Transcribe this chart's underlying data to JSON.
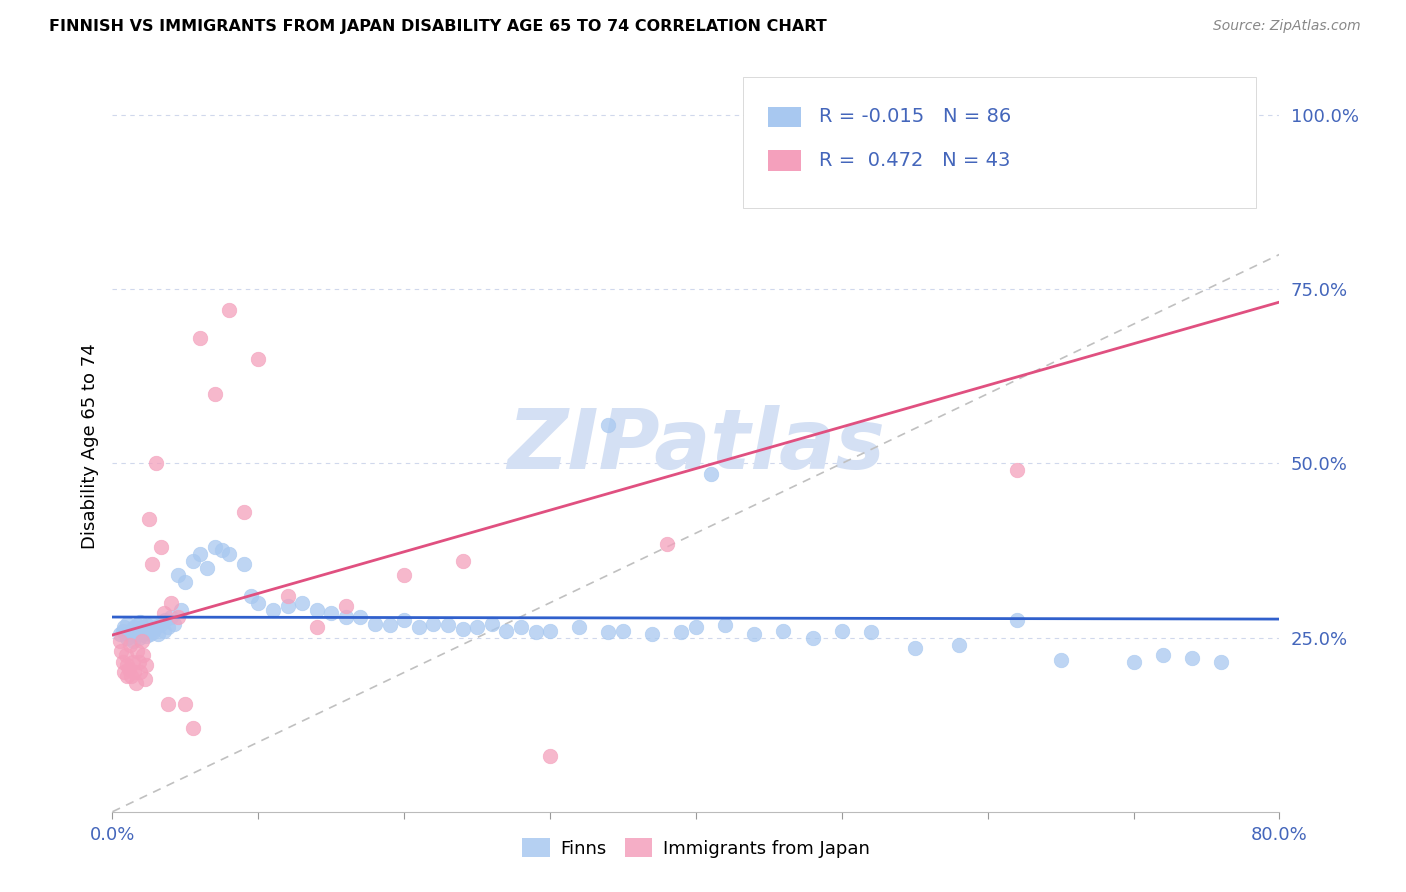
{
  "title": "FINNISH VS IMMIGRANTS FROM JAPAN DISABILITY AGE 65 TO 74 CORRELATION CHART",
  "source": "Source: ZipAtlas.com",
  "ylabel": "Disability Age 65 to 74",
  "xlim": [
    0.0,
    0.8
  ],
  "ylim": [
    0.0,
    1.05
  ],
  "blue_R": -0.015,
  "blue_N": 86,
  "pink_R": 0.472,
  "pink_N": 43,
  "blue_color": "#A8C8F0",
  "pink_color": "#F4A0BC",
  "blue_line_color": "#3060CC",
  "pink_line_color": "#E05080",
  "ref_line_color": "#C0C0C0",
  "watermark_color": "#D4E0F4",
  "legend_label_blue": "Finns",
  "legend_label_pink": "Immigrants from Japan",
  "tick_color": "#4466BB",
  "text_color": "#1a1a2e",
  "ytick_positions": [
    0.25,
    0.5,
    0.75,
    1.0
  ],
  "ytick_labels": [
    "25.0%",
    "50.0%",
    "75.0%",
    "100.0%"
  ],
  "xtick_positions": [
    0.0,
    0.1,
    0.2,
    0.3,
    0.4,
    0.5,
    0.6,
    0.7,
    0.8
  ],
  "xtick_labels": [
    "0.0%",
    "",
    "",
    "",
    "",
    "",
    "",
    "",
    "80.0%"
  ],
  "blue_x": [
    0.005,
    0.007,
    0.008,
    0.01,
    0.01,
    0.012,
    0.013,
    0.014,
    0.015,
    0.015,
    0.016,
    0.017,
    0.018,
    0.019,
    0.02,
    0.02,
    0.021,
    0.022,
    0.023,
    0.024,
    0.025,
    0.026,
    0.027,
    0.028,
    0.03,
    0.031,
    0.033,
    0.035,
    0.036,
    0.038,
    0.04,
    0.042,
    0.045,
    0.047,
    0.05,
    0.055,
    0.06,
    0.065,
    0.07,
    0.075,
    0.08,
    0.09,
    0.095,
    0.1,
    0.11,
    0.12,
    0.13,
    0.14,
    0.15,
    0.16,
    0.17,
    0.18,
    0.19,
    0.2,
    0.21,
    0.22,
    0.23,
    0.24,
    0.25,
    0.26,
    0.27,
    0.28,
    0.29,
    0.3,
    0.32,
    0.34,
    0.35,
    0.37,
    0.39,
    0.4,
    0.42,
    0.44,
    0.46,
    0.48,
    0.5,
    0.52,
    0.55,
    0.58,
    0.62,
    0.65,
    0.7,
    0.72,
    0.74,
    0.76,
    0.34,
    0.41
  ],
  "blue_y": [
    0.255,
    0.26,
    0.265,
    0.25,
    0.27,
    0.255,
    0.26,
    0.245,
    0.265,
    0.26,
    0.255,
    0.268,
    0.25,
    0.272,
    0.26,
    0.255,
    0.265,
    0.258,
    0.252,
    0.268,
    0.26,
    0.255,
    0.27,
    0.258,
    0.265,
    0.255,
    0.27,
    0.26,
    0.275,
    0.265,
    0.28,
    0.27,
    0.34,
    0.29,
    0.33,
    0.36,
    0.37,
    0.35,
    0.38,
    0.375,
    0.37,
    0.355,
    0.31,
    0.3,
    0.29,
    0.295,
    0.3,
    0.29,
    0.285,
    0.28,
    0.28,
    0.27,
    0.268,
    0.275,
    0.265,
    0.27,
    0.268,
    0.263,
    0.265,
    0.27,
    0.26,
    0.265,
    0.258,
    0.26,
    0.265,
    0.258,
    0.26,
    0.255,
    0.258,
    0.265,
    0.268,
    0.255,
    0.26,
    0.25,
    0.26,
    0.258,
    0.235,
    0.24,
    0.275,
    0.218,
    0.215,
    0.225,
    0.22,
    0.215,
    0.555,
    0.485
  ],
  "pink_x": [
    0.005,
    0.006,
    0.007,
    0.008,
    0.009,
    0.01,
    0.01,
    0.011,
    0.012,
    0.013,
    0.014,
    0.015,
    0.016,
    0.017,
    0.018,
    0.019,
    0.02,
    0.021,
    0.022,
    0.023,
    0.025,
    0.027,
    0.03,
    0.033,
    0.035,
    0.038,
    0.04,
    0.045,
    0.05,
    0.055,
    0.06,
    0.07,
    0.08,
    0.09,
    0.1,
    0.12,
    0.14,
    0.16,
    0.2,
    0.24,
    0.3,
    0.38,
    0.62
  ],
  "pink_y": [
    0.245,
    0.23,
    0.215,
    0.2,
    0.225,
    0.21,
    0.195,
    0.205,
    0.24,
    0.195,
    0.215,
    0.2,
    0.185,
    0.23,
    0.215,
    0.2,
    0.245,
    0.225,
    0.19,
    0.21,
    0.42,
    0.355,
    0.5,
    0.38,
    0.285,
    0.155,
    0.3,
    0.28,
    0.155,
    0.12,
    0.68,
    0.6,
    0.72,
    0.43,
    0.65,
    0.31,
    0.265,
    0.295,
    0.34,
    0.36,
    0.08,
    0.385,
    0.49
  ]
}
